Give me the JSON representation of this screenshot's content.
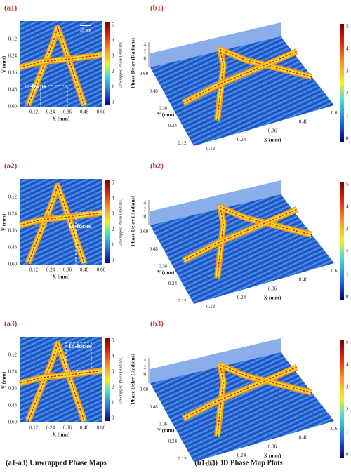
{
  "panels_a": [
    {
      "label": "(a1)",
      "focus": "In-focus",
      "scale": "25 μm"
    },
    {
      "label": "(a2)",
      "focus": "In-focus"
    },
    {
      "label": "(a3)",
      "focus": "In-focus"
    }
  ],
  "panels_b": [
    {
      "label": "(b1)"
    },
    {
      "label": "(b2)"
    },
    {
      "label": "(b3)"
    }
  ],
  "a_axes": {
    "y_label": "Y (mm)",
    "x_label": "X (mm)",
    "y_ticks": [
      "0.12",
      "0.24",
      "0.36",
      "0.48",
      "0.60"
    ],
    "x_ticks": [
      "0.12",
      "0.24",
      "0.36",
      "0.48",
      "0.60"
    ],
    "colorbar_label": "Unwrapped Phase (Radians)",
    "colorbar_ticks": [
      "5",
      "4",
      "3",
      "2",
      "1",
      "0"
    ]
  },
  "b_axes": {
    "z_label": "Phase Delay (Radians)",
    "z_ticks": [
      "4",
      "2",
      "0"
    ],
    "y_label": "Y (mm)",
    "x_label": "X (mm)",
    "y_ticks": [
      "0.60",
      "0.48",
      "0.36",
      "0.24",
      "0.12"
    ],
    "x_ticks": [
      "0.12",
      "0.24",
      "0.36",
      "0.48",
      "0.6"
    ],
    "colorbar_ticks": [
      "5",
      "4",
      "3",
      "2",
      "1",
      "0"
    ]
  },
  "captions": {
    "left": "(a1-a3) Unwrapped Phase Maps",
    "right": "(b1-b3) 3D Phase Map Plots"
  }
}
